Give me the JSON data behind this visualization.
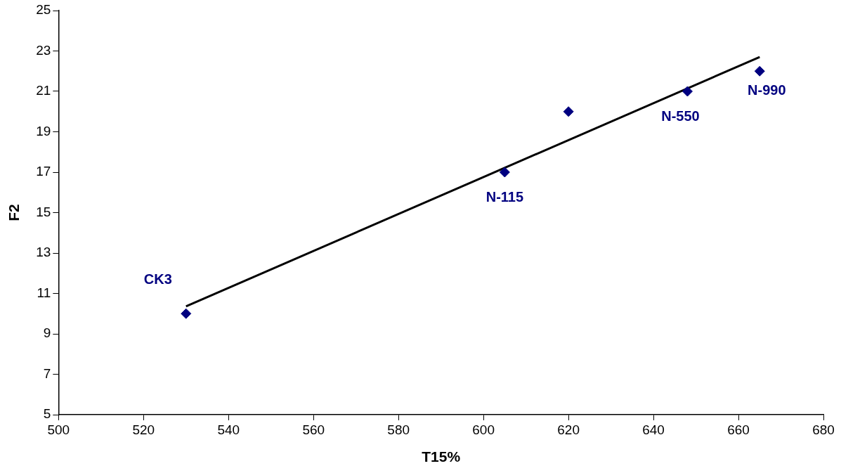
{
  "chart_data": {
    "type": "scatter",
    "xlabel": "T15%",
    "ylabel": "F2",
    "xlim": [
      500,
      680
    ],
    "xticks": [
      500,
      520,
      540,
      560,
      580,
      600,
      620,
      640,
      660,
      680
    ],
    "ylim": [
      5,
      25
    ],
    "yticks": [
      5,
      7,
      9,
      11,
      13,
      15,
      17,
      19,
      21,
      23,
      25
    ],
    "grid": false,
    "legend": false,
    "series": [
      {
        "marker": "diamond",
        "color": "#000080",
        "x": [
          530,
          605,
          620,
          648,
          665
        ],
        "values": [
          10,
          17,
          20,
          21,
          22
        ]
      },
      {
        "type": "line",
        "marker": "none",
        "color": "#000000",
        "x": [
          530,
          665
        ],
        "values": [
          10.36,
          22.7
        ]
      }
    ],
    "annotations": [
      {
        "text": "CK3",
        "x": 530,
        "y": 10
      },
      {
        "text": "N-115",
        "x": 605,
        "y": 17
      },
      {
        "text": "N-550",
        "x": 648,
        "y": 21
      },
      {
        "text": "N-990",
        "x": 665,
        "y": 22
      }
    ]
  }
}
